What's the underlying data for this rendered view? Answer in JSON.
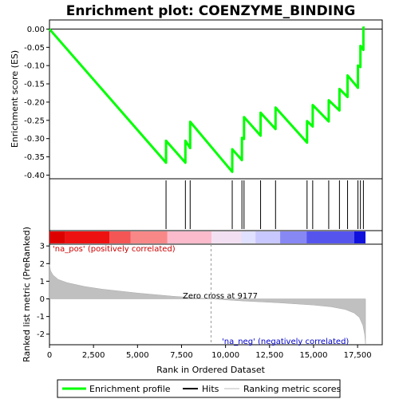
{
  "chart_data": {
    "type": "line",
    "title": "Enrichment plot: COENZYME_BINDING",
    "enrichment_panel": {
      "ylabel": "Enrichment score (ES)",
      "ylim": [
        -0.41,
        0.025
      ],
      "yticks": [
        0.0,
        -0.05,
        -0.1,
        -0.15,
        -0.2,
        -0.25,
        -0.3,
        -0.35,
        -0.4
      ],
      "ytick_labels": [
        "0.00",
        "-0.05",
        "-0.10",
        "-0.15",
        "-0.20",
        "-0.25",
        "-0.30",
        "-0.35",
        "-0.40"
      ],
      "series_name": "Enrichment profile",
      "color": "#00ff00",
      "x": [
        0,
        6620,
        6621,
        7720,
        7721,
        7990,
        7991,
        10380,
        10381,
        10930,
        10931,
        11050,
        11051,
        11990,
        11991,
        12840,
        12841,
        14630,
        14631,
        14950,
        14951,
        15860,
        15861,
        16470,
        16471,
        16930,
        16931,
        17520,
        17521,
        17660,
        17661,
        17830,
        17831,
        17900
      ],
      "y": [
        0.0,
        -0.366,
        -0.306,
        -0.366,
        -0.306,
        -0.326,
        -0.254,
        -0.391,
        -0.329,
        -0.359,
        -0.298,
        -0.301,
        -0.241,
        -0.292,
        -0.229,
        -0.274,
        -0.215,
        -0.311,
        -0.252,
        -0.267,
        -0.208,
        -0.253,
        -0.195,
        -0.223,
        -0.164,
        -0.186,
        -0.127,
        -0.161,
        -0.1,
        -0.104,
        -0.046,
        -0.057,
        0.004,
        0.004
      ]
    },
    "hits": {
      "series_name": "Hits",
      "positions": [
        6620,
        7720,
        7990,
        10380,
        10930,
        11050,
        11990,
        12840,
        14630,
        14950,
        15860,
        16470,
        16930,
        17520,
        17660,
        17830
      ]
    },
    "ranked_metric": {
      "series_name": "Ranking metric scores",
      "ylabel": "Ranked list metric (PreRanked)",
      "ylim": [
        -2.6,
        3.1
      ],
      "yticks": [
        3,
        2,
        1,
        0,
        -1,
        -2
      ],
      "ytick_labels": [
        "3",
        "2",
        "1",
        "0",
        "-1",
        "-2"
      ],
      "x": [
        0,
        60,
        200,
        500,
        1000,
        2000,
        3000,
        5000,
        7000,
        9177,
        11000,
        13000,
        15000,
        16000,
        16800,
        17300,
        17600,
        17800,
        17900,
        17950
      ],
      "y": [
        1.95,
        1.6,
        1.35,
        1.1,
        0.92,
        0.7,
        0.55,
        0.33,
        0.15,
        0.0,
        -0.12,
        -0.22,
        -0.35,
        -0.45,
        -0.6,
        -0.8,
        -1.05,
        -1.5,
        -2.0,
        -2.55
      ],
      "pos_label": "'na_pos' (positively correlated)",
      "neg_label": "'na_neg' (negatively correlated)",
      "zero_cross_label": "Zero cross at 9177",
      "zero_cross": 9177
    },
    "heatmap_colors": [
      "#dd0000",
      "#ee1111",
      "#f45555",
      "#f88888",
      "#fbbbcc",
      "#f2e0f2",
      "#e0e0ff",
      "#c8c8ff",
      "#8888f5",
      "#5555ee",
      "#1111dd"
    ],
    "heatmap_breaks": [
      0,
      900,
      3400,
      4600,
      6700,
      9200,
      10900,
      11700,
      13100,
      14600,
      17300,
      17950
    ],
    "xaxis": {
      "label": "Rank in Ordered Dataset",
      "xlim": [
        0,
        18900
      ],
      "xticks": [
        0,
        2500,
        5000,
        7500,
        10000,
        12500,
        15000,
        17500
      ],
      "xtick_labels": [
        "0",
        "2,500",
        "5,000",
        "7,500",
        "10,000",
        "12,500",
        "15,000",
        "17,500"
      ]
    },
    "legend": {
      "placement": "bottom",
      "items": [
        "Enrichment profile",
        "Hits",
        "Ranking metric scores"
      ]
    }
  }
}
